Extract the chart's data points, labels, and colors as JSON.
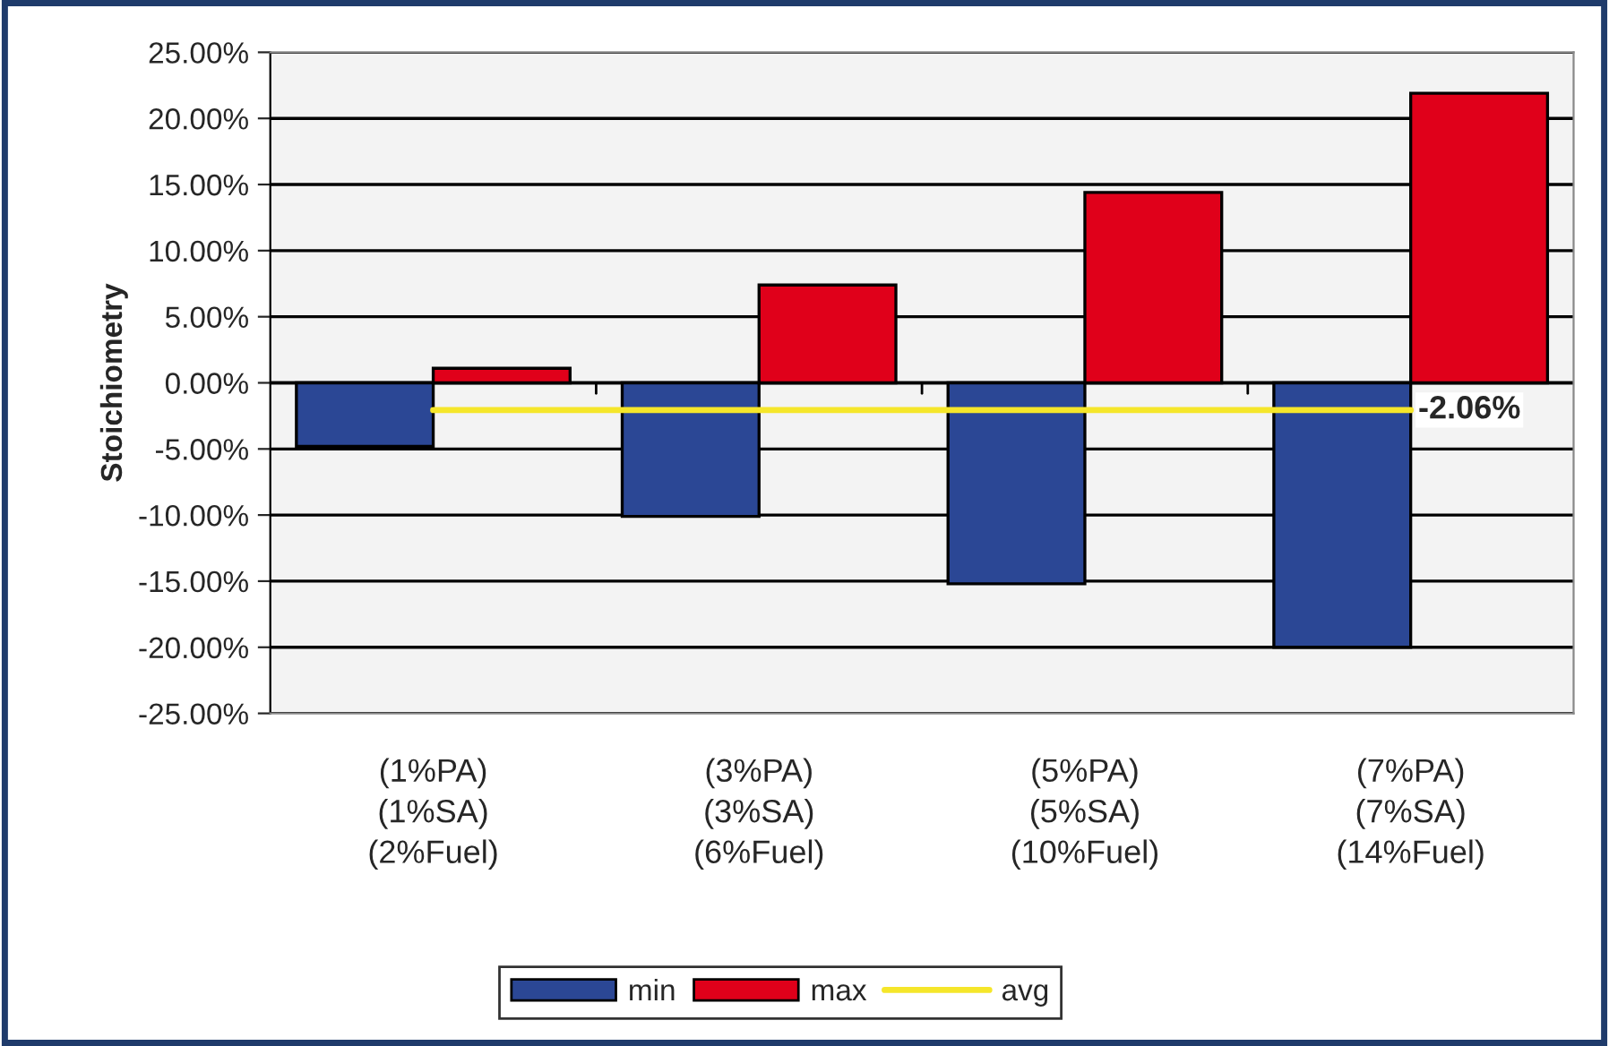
{
  "chart_data": {
    "type": "bar",
    "ylabel": "Stoichiometry",
    "categories": [
      "(1%PA)\n(1%SA)\n(2%Fuel)",
      "(3%PA)\n(3%SA)\n(6%Fuel)",
      "(5%PA)\n(5%SA)\n(10%Fuel)",
      "(7%PA)\n(7%SA)\n(14%Fuel)"
    ],
    "series": [
      {
        "name": "min",
        "color": "#2b4795",
        "values": [
          -4.8,
          -10.1,
          -15.2,
          -20.0
        ]
      },
      {
        "name": "max",
        "color": "#e0001a",
        "values": [
          1.1,
          7.4,
          14.4,
          21.9
        ]
      },
      {
        "name": "avg",
        "type": "line",
        "color": "#f5e62a",
        "values": [
          -2.06,
          -2.06,
          -2.06,
          -2.06
        ],
        "value_labels": [
          null,
          null,
          null,
          "-2.06%"
        ]
      }
    ],
    "ylim": [
      -25,
      25
    ],
    "yticks": [
      {
        "value": 25,
        "label": "25.00%"
      },
      {
        "value": 20,
        "label": "20.00%"
      },
      {
        "value": 15,
        "label": "15.00%"
      },
      {
        "value": 10,
        "label": "10.00%"
      },
      {
        "value": 5,
        "label": "5.00%"
      },
      {
        "value": 0,
        "label": "0.00%"
      },
      {
        "value": -5,
        "label": "-5.00%"
      },
      {
        "value": -10,
        "label": "-10.00%"
      },
      {
        "value": -15,
        "label": "-15.00%"
      },
      {
        "value": -20,
        "label": "-20.00%"
      },
      {
        "value": -25,
        "label": "-25.00%"
      }
    ],
    "grid": "y",
    "legend": "bottom"
  }
}
